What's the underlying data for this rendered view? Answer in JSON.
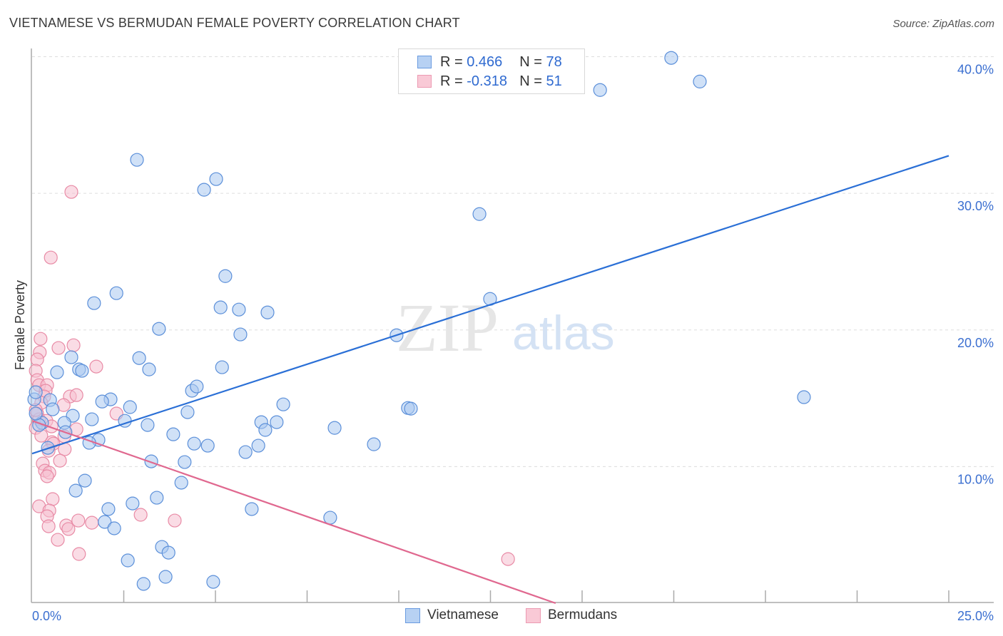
{
  "title": "VIETNAMESE VS BERMUDAN FEMALE POVERTY CORRELATION CHART",
  "source": "Source: ZipAtlas.com",
  "watermark": {
    "zip": "ZIP",
    "atlas": "atlas"
  },
  "legend": {
    "rows": [
      {
        "r_label": "R =",
        "r": "0.466",
        "n_label": "N =",
        "n": "78"
      },
      {
        "r_label": "R =",
        "r": "-0.318",
        "n_label": "N =",
        "n": "51"
      }
    ],
    "bottom": [
      "Vietnamese",
      "Bermudans"
    ]
  },
  "colors": {
    "blue": "#5b8fd9",
    "blue_fill": "#a9c8f0",
    "blue_line": "#2a6fd6",
    "pink": "#e88aa5",
    "pink_fill": "#f5bfd0",
    "pink_line": "#e0688f"
  },
  "chart_data": {
    "type": "scatter",
    "title": "VIETNAMESE VS BERMUDAN FEMALE POVERTY CORRELATION CHART",
    "xlabel": "",
    "ylabel": "Female Poverty",
    "xlim": [
      0,
      25
    ],
    "ylim": [
      0,
      40
    ],
    "x_tick_labels": [
      "0.0%",
      "25.0%"
    ],
    "y_ticks": [
      10,
      20,
      30,
      40
    ],
    "y_tick_labels": [
      "10.0%",
      "20.0%",
      "30.0%",
      "40.0%"
    ],
    "grid": true,
    "series": [
      {
        "name": "Vietnamese",
        "R": 0.466,
        "N": 78,
        "trend": {
          "intercept": 10.95,
          "slope": 0.872
        },
        "points": [
          [
            17.43,
            39.91
          ],
          [
            18.21,
            38.18
          ],
          [
            15.49,
            37.56
          ],
          [
            2.86,
            32.45
          ],
          [
            5.02,
            31.04
          ],
          [
            4.69,
            30.26
          ],
          [
            12.2,
            28.48
          ],
          [
            5.27,
            23.94
          ],
          [
            12.49,
            22.27
          ],
          [
            2.3,
            22.69
          ],
          [
            1.69,
            21.96
          ],
          [
            5.14,
            21.65
          ],
          [
            5.64,
            21.49
          ],
          [
            6.42,
            21.28
          ],
          [
            3.46,
            20.08
          ],
          [
            5.68,
            19.67
          ],
          [
            9.94,
            19.61
          ],
          [
            1.07,
            18.0
          ],
          [
            2.92,
            17.94
          ],
          [
            1.28,
            17.11
          ],
          [
            1.36,
            17.01
          ],
          [
            3.19,
            17.11
          ],
          [
            5.18,
            17.27
          ],
          [
            0.68,
            16.9
          ],
          [
            21.05,
            15.08
          ],
          [
            4.36,
            15.55
          ],
          [
            4.49,
            15.86
          ],
          [
            2.14,
            14.92
          ],
          [
            1.91,
            14.76
          ],
          [
            0.49,
            14.87
          ],
          [
            0.06,
            14.92
          ],
          [
            6.85,
            14.55
          ],
          [
            10.25,
            14.29
          ],
          [
            10.33,
            14.24
          ],
          [
            2.67,
            14.35
          ],
          [
            0.56,
            14.19
          ],
          [
            4.24,
            13.98
          ],
          [
            1.11,
            13.72
          ],
          [
            1.63,
            13.46
          ],
          [
            2.53,
            13.35
          ],
          [
            6.25,
            13.25
          ],
          [
            6.67,
            13.25
          ],
          [
            0.27,
            13.2
          ],
          [
            0.88,
            13.2
          ],
          [
            0.19,
            13.04
          ],
          [
            3.15,
            13.04
          ],
          [
            6.36,
            12.68
          ],
          [
            8.25,
            12.83
          ],
          [
            0.91,
            12.52
          ],
          [
            3.85,
            12.36
          ],
          [
            1.81,
            11.95
          ],
          [
            1.56,
            11.74
          ],
          [
            4.42,
            11.68
          ],
          [
            4.79,
            11.53
          ],
          [
            6.17,
            11.53
          ],
          [
            9.32,
            11.63
          ],
          [
            5.82,
            11.06
          ],
          [
            0.43,
            11.37
          ],
          [
            3.25,
            10.38
          ],
          [
            4.16,
            10.33
          ],
          [
            1.44,
            8.97
          ],
          [
            1.19,
            8.24
          ],
          [
            4.07,
            8.82
          ],
          [
            3.4,
            7.72
          ],
          [
            2.74,
            7.3
          ],
          [
            2.08,
            6.89
          ],
          [
            5.99,
            6.89
          ],
          [
            8.13,
            6.26
          ],
          [
            1.98,
            5.95
          ],
          [
            2.24,
            5.48
          ],
          [
            3.54,
            4.12
          ],
          [
            3.72,
            3.7
          ],
          [
            2.61,
            3.13
          ],
          [
            3.64,
            1.93
          ],
          [
            3.04,
            1.41
          ],
          [
            4.94,
            1.56
          ],
          [
            0.1,
            15.44
          ],
          [
            0.1,
            13.88
          ]
        ]
      },
      {
        "name": "Bermudans",
        "R": -0.318,
        "N": 51,
        "trend": {
          "intercept": 13.35,
          "slope": -0.935
        },
        "points": [
          [
            1.07,
            30.1
          ],
          [
            0.51,
            25.3
          ],
          [
            0.23,
            19.35
          ],
          [
            0.21,
            18.36
          ],
          [
            0.72,
            18.68
          ],
          [
            1.13,
            18.88
          ],
          [
            0.14,
            17.84
          ],
          [
            1.75,
            17.32
          ],
          [
            0.1,
            17.01
          ],
          [
            0.14,
            16.33
          ],
          [
            0.19,
            15.96
          ],
          [
            0.41,
            15.96
          ],
          [
            0.37,
            15.55
          ],
          [
            0.33,
            15.13
          ],
          [
            1.03,
            15.13
          ],
          [
            1.21,
            15.23
          ],
          [
            0.86,
            14.5
          ],
          [
            2.3,
            13.88
          ],
          [
            0.14,
            13.88
          ],
          [
            0.19,
            13.46
          ],
          [
            0.39,
            13.35
          ],
          [
            0.1,
            12.83
          ],
          [
            0.53,
            12.94
          ],
          [
            1.21,
            12.73
          ],
          [
            0.25,
            12.26
          ],
          [
            0.88,
            12.21
          ],
          [
            0.54,
            11.79
          ],
          [
            0.58,
            11.68
          ],
          [
            0.89,
            11.27
          ],
          [
            0.45,
            11.16
          ],
          [
            0.76,
            10.43
          ],
          [
            0.29,
            10.22
          ],
          [
            0.35,
            9.7
          ],
          [
            0.47,
            9.55
          ],
          [
            0.41,
            9.29
          ],
          [
            0.56,
            7.62
          ],
          [
            0.19,
            7.09
          ],
          [
            0.47,
            6.78
          ],
          [
            0.41,
            6.36
          ],
          [
            0.45,
            5.63
          ],
          [
            0.93,
            5.69
          ],
          [
            0.99,
            5.43
          ],
          [
            1.26,
            6.05
          ],
          [
            1.63,
            5.89
          ],
          [
            2.96,
            6.47
          ],
          [
            3.89,
            6.05
          ],
          [
            0.7,
            4.64
          ],
          [
            1.28,
            3.6
          ],
          [
            12.98,
            3.23
          ],
          [
            0.25,
            14.66
          ],
          [
            0.1,
            14.14
          ]
        ]
      }
    ]
  }
}
